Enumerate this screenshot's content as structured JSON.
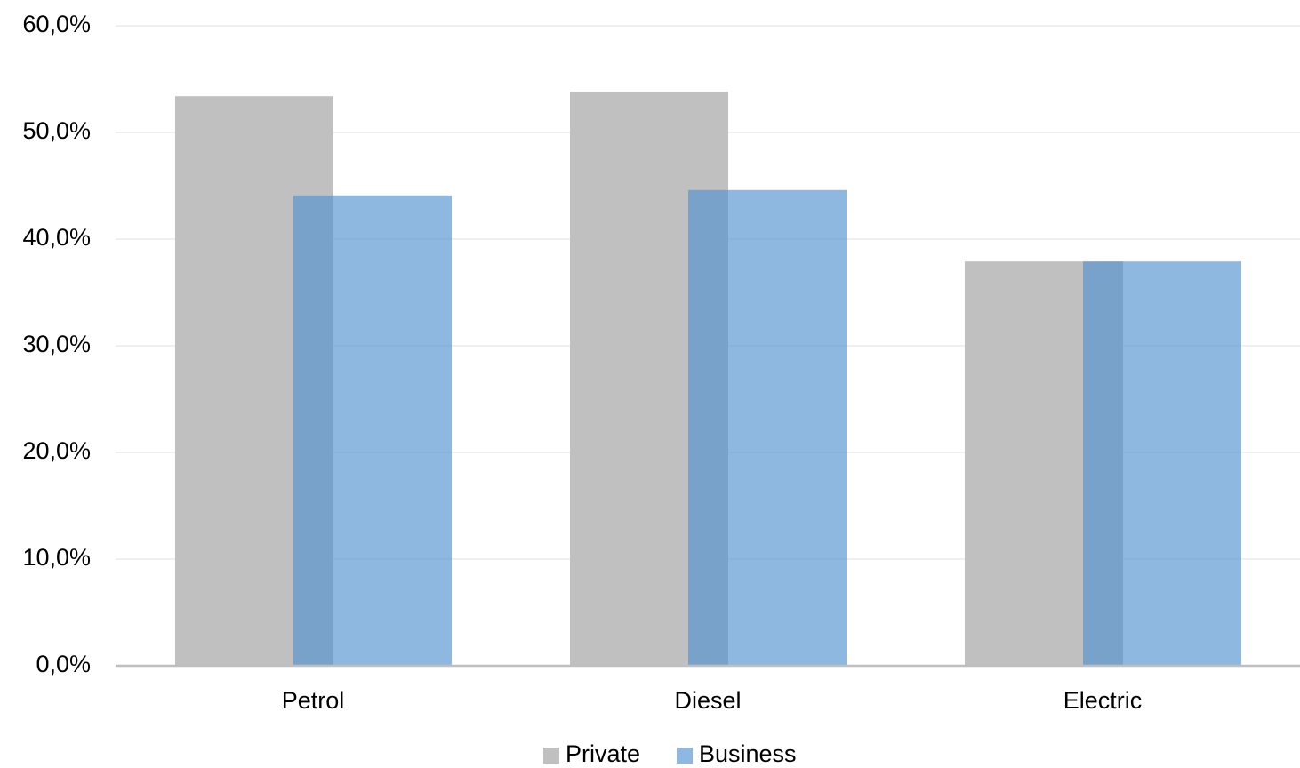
{
  "chart_data": {
    "type": "bar",
    "categories": [
      "Petrol",
      "Diesel",
      "Electric"
    ],
    "series": [
      {
        "name": "Private",
        "color": "#c0c0c0",
        "values": [
          53.4,
          53.8,
          37.9
        ]
      },
      {
        "name": "Business",
        "color": "#5392d1",
        "values": [
          44.1,
          44.6,
          37.9
        ]
      }
    ],
    "ylim": [
      0,
      60
    ],
    "yticks": [
      {
        "value": 0,
        "label": "0,0%"
      },
      {
        "value": 10,
        "label": "10,0%"
      },
      {
        "value": 20,
        "label": "20,0%"
      },
      {
        "value": 30,
        "label": "30,0%"
      },
      {
        "value": 40,
        "label": "40,0%"
      },
      {
        "value": 50,
        "label": "50,0%"
      },
      {
        "value": 60,
        "label": "60,0%"
      }
    ],
    "grid": true,
    "legend": "bottom"
  }
}
